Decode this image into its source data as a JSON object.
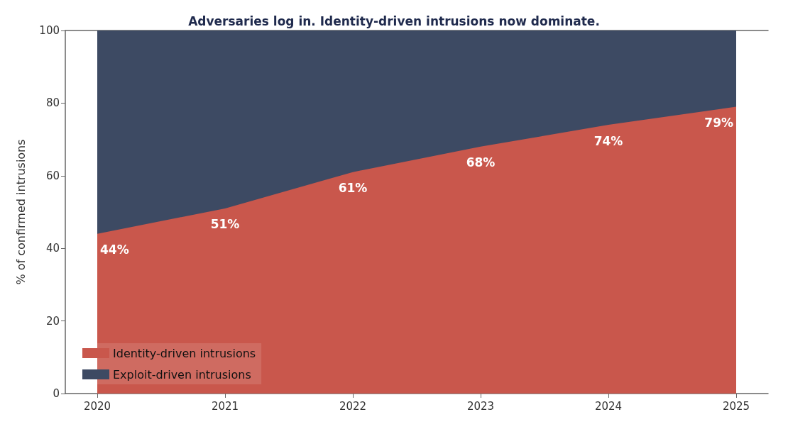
{
  "chart_data": {
    "type": "area",
    "title": "Adversaries log in. Identity-driven intrusions now dominate.",
    "ylabel": "% of confirmed intrusions",
    "x": [
      2020,
      2021,
      2022,
      2023,
      2024,
      2025
    ],
    "stacked": true,
    "series": [
      {
        "name": "Identity-driven intrusions",
        "color": "#c9574c",
        "values": [
          44,
          51,
          61,
          68,
          74,
          79
        ],
        "value_labels": [
          "44%",
          "51%",
          "61%",
          "68%",
          "74%",
          "79%"
        ]
      },
      {
        "name": "Exploit-driven intrusions",
        "color": "#3d4a63",
        "values": [
          56,
          49,
          39,
          32,
          26,
          21
        ]
      }
    ],
    "xlim": [
      2019.75,
      2025.25
    ],
    "xticks": [
      2020,
      2021,
      2022,
      2023,
      2024,
      2025
    ],
    "ylim": [
      0,
      100
    ],
    "yticks": [
      0,
      20,
      40,
      60,
      80,
      100
    ],
    "grid": false,
    "legend": "bottom left"
  }
}
